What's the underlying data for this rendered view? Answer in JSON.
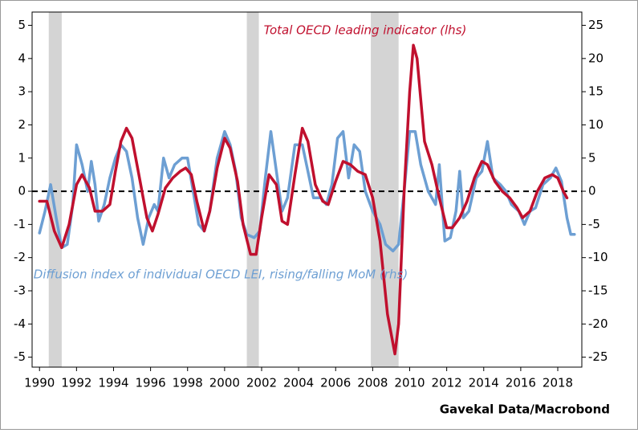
{
  "chart_data": {
    "type": "line",
    "annotations": [
      "Total OECD leading indicator (lhs)",
      "Diffusion index of individual OECD LEI, rising/falling MoM (rhs)"
    ],
    "source": "Gavekal Data/Macrobond",
    "xlim": [
      1989.6,
      2019.3
    ],
    "xticks": [
      1990,
      1992,
      1994,
      1996,
      1998,
      2000,
      2002,
      2004,
      2006,
      2008,
      2010,
      2012,
      2014,
      2016,
      2018
    ],
    "ylim": [
      -5.3,
      5.4
    ],
    "yticks": [
      -5,
      -4,
      -3,
      -2,
      -1,
      0,
      1,
      2,
      3,
      4,
      5
    ],
    "y2lim": [
      -26.5,
      27
    ],
    "y2ticks": [
      -25,
      -20,
      -15,
      -10,
      -5,
      0,
      5,
      10,
      15,
      20,
      25
    ],
    "hline": 0,
    "shaded_periods": [
      [
        1990.5,
        1991.2
      ],
      [
        2001.2,
        2001.85
      ],
      [
        2007.9,
        2009.4
      ]
    ],
    "shade_color": "#d4d4d4",
    "series": [
      {
        "name": "Diffusion index of individual OECD LEI, rising/falling MoM (rhs)",
        "color": "#6d9fd3",
        "axis": "y2",
        "x": [
          1990.0,
          1990.3,
          1990.6,
          1990.9,
          1991.2,
          1991.5,
          1991.8,
          1992.0,
          1992.3,
          1992.6,
          1992.8,
          1993.0,
          1993.2,
          1993.5,
          1993.8,
          1994.1,
          1994.4,
          1994.7,
          1995.0,
          1995.3,
          1995.6,
          1995.9,
          1996.2,
          1996.4,
          1996.7,
          1997.0,
          1997.3,
          1997.7,
          1998.0,
          1998.3,
          1998.6,
          1998.9,
          1999.2,
          1999.6,
          2000.0,
          2000.3,
          2000.6,
          2000.9,
          2001.2,
          2001.6,
          2001.9,
          2002.2,
          2002.5,
          2002.8,
          2003.1,
          2003.4,
          2003.8,
          2004.2,
          2004.5,
          2004.8,
          2005.2,
          2005.5,
          2005.8,
          2006.1,
          2006.4,
          2006.7,
          2007.0,
          2007.3,
          2007.6,
          2008.0,
          2008.4,
          2008.7,
          2009.1,
          2009.4,
          2009.7,
          2010.0,
          2010.3,
          2010.6,
          2011.0,
          2011.4,
          2011.6,
          2011.9,
          2012.2,
          2012.5,
          2012.7,
          2012.9,
          2013.2,
          2013.6,
          2013.9,
          2014.2,
          2014.5,
          2014.9,
          2015.2,
          2015.5,
          2015.9,
          2016.2,
          2016.5,
          2016.8,
          2017.2,
          2017.6,
          2017.9,
          2018.2,
          2018.5,
          2018.7,
          2018.9
        ],
        "values": [
          -6.3,
          -3,
          1,
          -4,
          -8.5,
          -8,
          -2,
          7,
          4,
          0,
          4.5,
          1,
          -4.5,
          -2,
          2,
          5,
          7,
          6,
          2,
          -4,
          -8,
          -4,
          -2,
          -3,
          5,
          2,
          4,
          5,
          5,
          0,
          -5,
          -6,
          -3,
          5,
          9,
          7,
          3,
          -4,
          -6.5,
          -7,
          -6,
          2,
          9,
          3,
          -3,
          -1,
          7,
          7,
          3,
          -1,
          -1,
          -2,
          1,
          8,
          9,
          2,
          7,
          6,
          0,
          -3,
          -5,
          -8,
          -9,
          -8,
          0,
          9,
          9,
          4,
          0,
          -2,
          4,
          -7.5,
          -7,
          -3,
          3,
          -4,
          -3,
          2,
          3,
          7.5,
          2,
          1,
          0,
          -2,
          -3,
          -5,
          -3,
          -2.5,
          1,
          2,
          3.5,
          1.5,
          -4,
          -6.5,
          -6.5
        ]
      },
      {
        "name": "Total OECD leading indicator (lhs)",
        "color": "#c0102e",
        "axis": "y",
        "x": [
          1990.0,
          1990.4,
          1990.8,
          1991.2,
          1991.6,
          1992.0,
          1992.3,
          1992.7,
          1993.0,
          1993.4,
          1993.8,
          1994.1,
          1994.4,
          1994.7,
          1995.0,
          1995.4,
          1995.8,
          1996.1,
          1996.4,
          1996.8,
          1997.2,
          1997.6,
          1997.9,
          1998.2,
          1998.5,
          1998.9,
          1999.2,
          1999.6,
          2000.0,
          2000.3,
          2000.7,
          2001.0,
          2001.4,
          2001.7,
          2002.0,
          2002.4,
          2002.8,
          2003.1,
          2003.4,
          2003.8,
          2004.2,
          2004.5,
          2004.9,
          2005.3,
          2005.6,
          2006.0,
          2006.4,
          2006.8,
          2007.2,
          2007.6,
          2008.0,
          2008.4,
          2008.8,
          2009.2,
          2009.4,
          2009.7,
          2010.0,
          2010.2,
          2010.4,
          2010.8,
          2011.2,
          2011.6,
          2012.0,
          2012.3,
          2012.7,
          2013.1,
          2013.5,
          2013.9,
          2014.2,
          2014.6,
          2015.0,
          2015.4,
          2015.8,
          2016.1,
          2016.5,
          2016.9,
          2017.3,
          2017.7,
          2018.0,
          2018.3,
          2018.5
        ],
        "values": [
          -0.3,
          -0.3,
          -1.2,
          -1.7,
          -1.0,
          0.2,
          0.5,
          0.1,
          -0.6,
          -0.6,
          -0.4,
          0.6,
          1.5,
          1.9,
          1.6,
          0.4,
          -0.8,
          -1.2,
          -0.7,
          0.1,
          0.4,
          0.6,
          0.7,
          0.5,
          -0.3,
          -1.2,
          -0.6,
          0.7,
          1.6,
          1.3,
          0.3,
          -1.0,
          -1.9,
          -1.9,
          -0.8,
          0.5,
          0.2,
          -0.9,
          -1.0,
          0.5,
          1.9,
          1.5,
          0.2,
          -0.3,
          -0.4,
          0.3,
          0.9,
          0.8,
          0.6,
          0.5,
          -0.2,
          -1.5,
          -3.7,
          -4.9,
          -4.0,
          0.0,
          3.0,
          4.4,
          4.0,
          1.5,
          0.8,
          -0.2,
          -1.1,
          -1.1,
          -0.8,
          -0.3,
          0.4,
          0.9,
          0.8,
          0.3,
          0.0,
          -0.2,
          -0.5,
          -0.8,
          -0.6,
          0.0,
          0.4,
          0.5,
          0.4,
          0.0,
          -0.2
        ]
      }
    ]
  }
}
